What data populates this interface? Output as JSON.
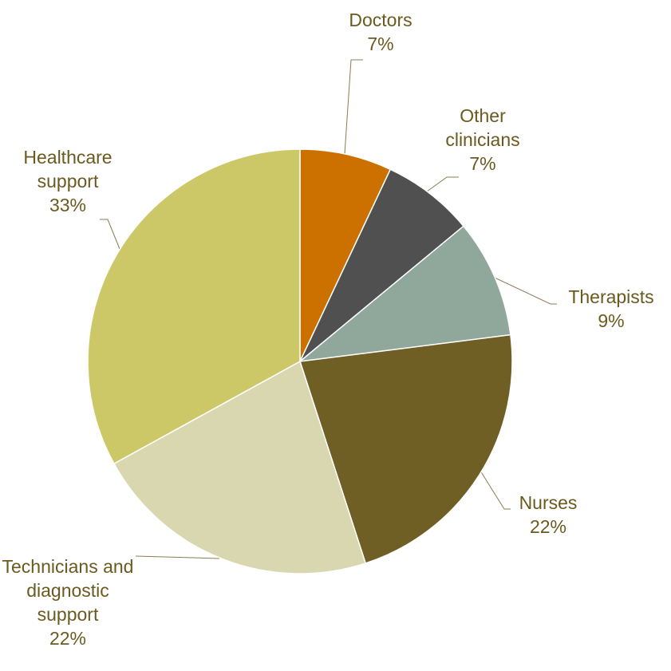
{
  "chart_data": {
    "type": "pie",
    "categories": [
      "Doctors",
      "Other clinicians",
      "Therapists",
      "Nurses",
      "Technicians and diagnostic support",
      "Healthcare support"
    ],
    "values": [
      7,
      7,
      9,
      22,
      22,
      33
    ],
    "value_labels": [
      "7%",
      "7%",
      "9%",
      "22%",
      "22%",
      "33%"
    ],
    "colors": [
      "#cc7000",
      "#505050",
      "#8fa89b",
      "#6f5f25",
      "#d9d7b0",
      "#ccc868"
    ]
  }
}
